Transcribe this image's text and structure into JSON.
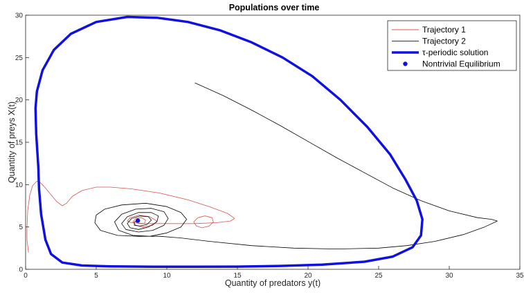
{
  "chart_data": {
    "type": "line",
    "title": "Populations over time",
    "xlabel": "Quantity of predators y(t)",
    "ylabel": "Quantity of preys X(t)",
    "xlim": [
      0,
      35
    ],
    "ylim": [
      0,
      30
    ],
    "xticks": [
      0,
      5,
      10,
      15,
      20,
      25,
      30,
      35
    ],
    "yticks": [
      0,
      5,
      10,
      15,
      20,
      25,
      30
    ],
    "grid": false,
    "legend_position": "top-right",
    "series": [
      {
        "name": "Trajectory 1",
        "color": "#d9534f",
        "style": "thin-line",
        "x": [
          0.2,
          0.1,
          0.1,
          0.15,
          0.3,
          0.5,
          0.8,
          1.0,
          1.3,
          1.7,
          2.2,
          2.6,
          2.9,
          3.3,
          4.0,
          5.0,
          6.0,
          7.5,
          9.5,
          11.5,
          13.0,
          14.3,
          14.8,
          14.5,
          13.5,
          12.0,
          10.0,
          8.5,
          7.5,
          7.2,
          7.4,
          8.0,
          8.8,
          9.3,
          9.0,
          8.3,
          7.8,
          7.6,
          7.8,
          8.2,
          8.5,
          8.4,
          8.0,
          7.8
        ],
        "y": [
          2.0,
          3.5,
          5.0,
          7.0,
          8.8,
          9.9,
          10.4,
          10.3,
          9.8,
          9.0,
          8.0,
          7.5,
          7.8,
          8.6,
          9.3,
          9.7,
          9.7,
          9.5,
          9.0,
          8.2,
          7.4,
          6.6,
          6.0,
          5.7,
          5.5,
          5.4,
          5.4,
          5.4,
          5.5,
          5.7,
          6.1,
          6.4,
          6.2,
          5.7,
          5.2,
          5.0,
          5.2,
          5.6,
          6.0,
          6.1,
          5.8,
          5.4,
          5.4,
          5.6
        ]
      },
      {
        "name": "",
        "color": "#d9534f",
        "style": "thin-line",
        "x": [
          11.9,
          12.1,
          12.5,
          13.0,
          13.3,
          13.2,
          12.7,
          12.2,
          11.9
        ],
        "y": [
          5.6,
          5.1,
          4.9,
          5.1,
          5.6,
          6.1,
          6.3,
          6.1,
          5.6
        ]
      },
      {
        "name": "Trajectory 2",
        "color": "#000000",
        "style": "thin-line",
        "x": [
          12.0,
          14.0,
          16.0,
          18.0,
          20.0,
          22.0,
          24.0,
          26.0,
          28.0,
          30.0,
          32.0,
          33.0,
          33.4,
          32.5,
          31.0,
          29.0,
          27.0,
          25.0,
          22.0,
          19.0,
          16.0,
          13.0,
          11.0,
          9.5,
          8.0,
          6.5,
          5.3,
          4.9,
          5.0,
          5.6,
          6.8,
          8.5,
          10.0,
          11.0,
          11.4,
          11.0,
          10.0,
          8.8,
          7.6,
          6.6,
          6.3,
          6.8,
          7.8,
          8.9,
          9.8,
          10.1,
          9.8,
          9.0,
          8.0,
          7.1,
          6.8,
          7.2,
          8.0,
          8.9,
          9.4,
          9.3,
          8.7,
          8.0,
          7.4,
          7.2,
          7.5,
          8.1,
          8.7,
          8.9,
          8.6,
          8.1,
          7.7,
          7.7,
          8.0
        ],
        "y": [
          22.0,
          20.5,
          18.8,
          17.0,
          15.1,
          13.2,
          11.4,
          9.6,
          8.1,
          6.9,
          6.1,
          5.9,
          5.7,
          5.0,
          4.1,
          3.3,
          2.8,
          2.5,
          2.4,
          2.5,
          2.8,
          3.3,
          3.7,
          3.9,
          3.9,
          4.0,
          4.6,
          5.5,
          6.4,
          7.1,
          7.6,
          7.8,
          7.4,
          6.7,
          5.9,
          5.0,
          4.3,
          3.9,
          4.0,
          4.6,
          5.6,
          6.5,
          7.1,
          7.2,
          6.8,
          6.0,
          5.2,
          4.6,
          4.4,
          4.7,
          5.4,
          6.2,
          6.7,
          6.7,
          6.3,
          5.6,
          5.0,
          4.7,
          4.9,
          5.4,
          6.0,
          6.3,
          6.2,
          5.8,
          5.3,
          5.1,
          5.2,
          5.6,
          5.8
        ]
      },
      {
        "name": "τ-periodic solution",
        "color": "#1010e0",
        "style": "thick-line",
        "x": [
          0.9,
          0.75,
          0.7,
          0.8,
          1.2,
          2.0,
          3.2,
          5.0,
          7.2,
          9.3,
          11.5,
          13.8,
          16.0,
          18.2,
          20.3,
          22.3,
          24.2,
          25.8,
          26.9,
          27.7,
          28.1,
          28.0,
          27.4,
          26.0,
          24.0,
          21.0,
          18.0,
          15.0,
          12.0,
          9.0,
          6.0,
          4.0,
          2.6,
          1.8,
          1.4,
          1.1,
          0.95,
          0.9
        ],
        "y": [
          12.0,
          16.0,
          19.0,
          21.0,
          23.5,
          25.9,
          27.8,
          29.2,
          29.8,
          29.7,
          29.2,
          28.2,
          26.8,
          25.0,
          22.8,
          20.0,
          16.8,
          13.6,
          10.6,
          8.1,
          5.9,
          4.0,
          2.6,
          1.5,
          0.9,
          0.55,
          0.4,
          0.32,
          0.3,
          0.3,
          0.35,
          0.45,
          0.8,
          1.8,
          3.5,
          6.5,
          9.5,
          12.0
        ]
      }
    ],
    "points": [
      {
        "name": "Nontrivial Equilibrium",
        "color": "#1010e0",
        "x": 7.95,
        "y": 5.75
      }
    ],
    "legend": [
      {
        "label": "Trajectory 1",
        "color": "#d9534f",
        "kind": "thin"
      },
      {
        "label": "Trajectory 2",
        "color": "#333333",
        "kind": "thin"
      },
      {
        "label": "τ-periodic solution",
        "color": "#1010e0",
        "kind": "thick"
      },
      {
        "label": "Nontrivial Equilibrium",
        "color": "#1010e0",
        "kind": "dot"
      }
    ]
  }
}
